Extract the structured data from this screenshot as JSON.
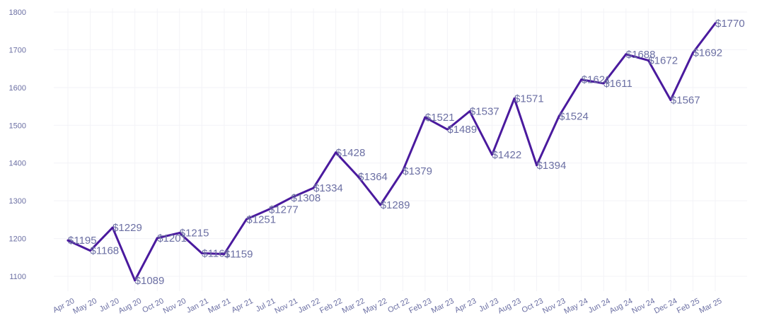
{
  "chart_data": {
    "type": "line",
    "categories": [
      "Apr 20",
      "May 20",
      "Jul 20",
      "Aug 20",
      "Oct 20",
      "Nov 20",
      "Jan 21",
      "Mar 21",
      "Apr 21",
      "Jul 21",
      "Nov 21",
      "Jan 22",
      "Feb 22",
      "Mar 22",
      "May 22",
      "Oct 22",
      "Feb 23",
      "Mar 23",
      "Apr 23",
      "Jul 23",
      "Aug 23",
      "Oct 23",
      "Nov 23",
      "May 24",
      "Jun 24",
      "Aug 24",
      "Nov 24",
      "Dec 24",
      "Feb 25",
      "Mar 25"
    ],
    "values": [
      1195,
      1168,
      1229,
      1089,
      1201,
      1215,
      1161,
      1159,
      1251,
      1277,
      1308,
      1334,
      1428,
      1364,
      1289,
      1379,
      1521,
      1489,
      1537,
      1422,
      1571,
      1394,
      1524,
      1621,
      1611,
      1688,
      1672,
      1567,
      1692,
      1770
    ],
    "data_labels": [
      "$1195",
      "$1168",
      "$1229",
      "$1089",
      "$1201",
      "$1215",
      "$1161",
      "$1159",
      "$1251",
      "$1277",
      "$1308",
      "$1334",
      "$1428",
      "$1364",
      "$1289",
      "$1379",
      "$1521",
      "$1489",
      "$1537",
      "$1422",
      "$1571",
      "$1394",
      "$1524",
      "$1621",
      "$1611",
      "$1688",
      "$1672",
      "$1567",
      "$1692",
      "$1770"
    ],
    "ylim": [
      1050,
      1800
    ],
    "yticks": [
      1100,
      1200,
      1300,
      1400,
      1500,
      1600,
      1700,
      1800
    ],
    "ytick_labels": [
      "1100",
      "1200",
      "1300",
      "1400",
      "1500",
      "1600",
      "1700",
      "1800"
    ],
    "title": "",
    "xlabel": "",
    "ylabel": "",
    "grid": true,
    "legend": "none",
    "colors": {
      "line": "#4a1a9e",
      "text": "#6b6fa3",
      "grid": "#f3f3f7"
    }
  }
}
